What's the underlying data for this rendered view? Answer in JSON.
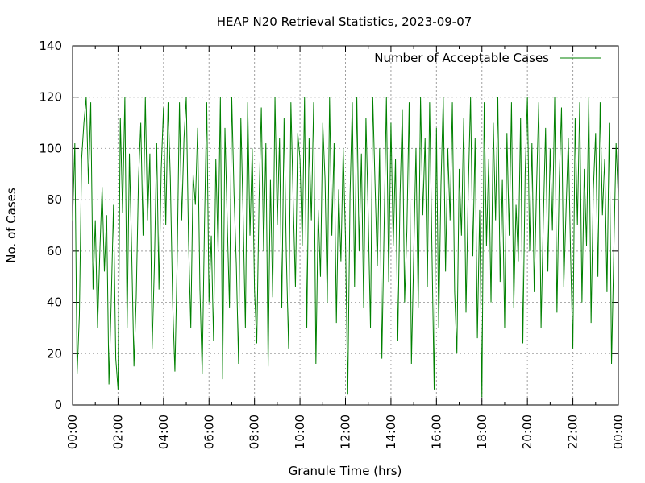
{
  "chart_data": {
    "type": "line",
    "title": "HEAP N20 Retrieval Statistics, 2023-09-07",
    "xlabel": "Granule Time (hrs)",
    "ylabel": "No. of Cases",
    "xlim": [
      0,
      24
    ],
    "ylim": [
      0,
      140
    ],
    "x_ticks": [
      0,
      2,
      4,
      6,
      8,
      10,
      12,
      14,
      16,
      18,
      20,
      22,
      24
    ],
    "x_tick_labels": [
      "00:00",
      "02:00",
      "04:00",
      "06:00",
      "08:00",
      "10:00",
      "12:00",
      "14:00",
      "16:00",
      "18:00",
      "20:00",
      "22:00",
      "00:00"
    ],
    "y_ticks": [
      0,
      20,
      40,
      60,
      80,
      100,
      120,
      140
    ],
    "y_tick_labels": [
      "0",
      "20",
      "40",
      "60",
      "80",
      "100",
      "120",
      "140"
    ],
    "grid": true,
    "legend_position": "top-right",
    "series": [
      {
        "name": "Number of Acceptable Cases",
        "color": "#008000",
        "x": [
          0.0,
          0.1,
          0.2,
          0.3,
          0.4,
          0.5,
          0.6,
          0.7,
          0.8,
          0.9,
          1.0,
          1.1,
          1.2,
          1.3,
          1.4,
          1.5,
          1.6,
          1.7,
          1.8,
          1.9,
          2.0,
          2.1,
          2.2,
          2.3,
          2.4,
          2.5,
          2.6,
          2.7,
          2.8,
          2.9,
          3.0,
          3.1,
          3.2,
          3.3,
          3.4,
          3.5,
          3.6,
          3.7,
          3.8,
          3.9,
          4.0,
          4.1,
          4.2,
          4.3,
          4.4,
          4.5,
          4.6,
          4.7,
          4.8,
          4.9,
          5.0,
          5.1,
          5.2,
          5.3,
          5.4,
          5.5,
          5.6,
          5.7,
          5.8,
          5.9,
          6.0,
          6.1,
          6.2,
          6.3,
          6.4,
          6.5,
          6.6,
          6.7,
          6.8,
          6.9,
          7.0,
          7.1,
          7.2,
          7.3,
          7.4,
          7.5,
          7.6,
          7.7,
          7.8,
          7.9,
          8.0,
          8.1,
          8.2,
          8.3,
          8.4,
          8.5,
          8.6,
          8.7,
          8.8,
          8.9,
          9.0,
          9.1,
          9.2,
          9.3,
          9.4,
          9.5,
          9.6,
          9.7,
          9.8,
          9.9,
          10.0,
          10.1,
          10.2,
          10.3,
          10.4,
          10.5,
          10.6,
          10.7,
          10.8,
          10.9,
          11.0,
          11.1,
          11.2,
          11.3,
          11.4,
          11.5,
          11.6,
          11.7,
          11.8,
          11.9,
          12.0,
          12.1,
          12.2,
          12.3,
          12.4,
          12.5,
          12.6,
          12.7,
          12.8,
          12.9,
          13.0,
          13.1,
          13.2,
          13.3,
          13.4,
          13.5,
          13.6,
          13.7,
          13.8,
          13.9,
          14.0,
          14.1,
          14.2,
          14.3,
          14.4,
          14.5,
          14.6,
          14.7,
          14.8,
          14.9,
          15.0,
          15.1,
          15.2,
          15.3,
          15.4,
          15.5,
          15.6,
          15.7,
          15.8,
          15.9,
          16.0,
          16.1,
          16.2,
          16.3,
          16.4,
          16.5,
          16.6,
          16.7,
          16.8,
          16.9,
          17.0,
          17.1,
          17.2,
          17.3,
          17.4,
          17.5,
          17.6,
          17.7,
          17.8,
          17.9,
          18.0,
          18.1,
          18.2,
          18.3,
          18.4,
          18.5,
          18.6,
          18.7,
          18.8,
          18.9,
          19.0,
          19.1,
          19.2,
          19.3,
          19.4,
          19.5,
          19.6,
          19.7,
          19.8,
          19.9,
          20.0,
          20.1,
          20.2,
          20.3,
          20.4,
          20.5,
          20.6,
          20.7,
          20.8,
          20.9,
          21.0,
          21.1,
          21.2,
          21.3,
          21.4,
          21.5,
          21.6,
          21.7,
          21.8,
          21.9,
          22.0,
          22.1,
          22.2,
          22.3,
          22.4,
          22.5,
          22.6,
          22.7,
          22.8,
          22.9,
          23.0,
          23.1,
          23.2,
          23.3,
          23.4,
          23.5,
          23.6,
          23.7,
          23.8,
          23.9,
          24.0
        ],
        "values": [
          72,
          102,
          12,
          35,
          96,
          110,
          120,
          86,
          118,
          45,
          72,
          30,
          60,
          85,
          52,
          74,
          8,
          40,
          78,
          18,
          6,
          112,
          75,
          120,
          30,
          98,
          60,
          15,
          42,
          88,
          110,
          66,
          120,
          72,
          98,
          22,
          55,
          102,
          45,
          92,
          116,
          70,
          118,
          88,
          40,
          13,
          56,
          118,
          72,
          104,
          120,
          64,
          30,
          90,
          78,
          108,
          45,
          12,
          70,
          118,
          40,
          66,
          25,
          96,
          60,
          120,
          10,
          108,
          72,
          38,
          120,
          82,
          55,
          16,
          112,
          74,
          30,
          118,
          66,
          100,
          45,
          24,
          80,
          116,
          60,
          102,
          15,
          88,
          42,
          120,
          70,
          104,
          38,
          112,
          58,
          22,
          118,
          80,
          46,
          106,
          96,
          62,
          120,
          30,
          104,
          72,
          118,
          16,
          76,
          50,
          110,
          88,
          40,
          120,
          66,
          102,
          32,
          84,
          56,
          100,
          65,
          4,
          82,
          118,
          46,
          120,
          60,
          98,
          38,
          112,
          74,
          30,
          120,
          86,
          54,
          100,
          18,
          70,
          120,
          48,
          110,
          62,
          96,
          25,
          82,
          115,
          40,
          68,
          118,
          16,
          58,
          100,
          38,
          120,
          74,
          104,
          46,
          118,
          62,
          6,
          108,
          30,
          86,
          120,
          52,
          100,
          72,
          118,
          44,
          20,
          92,
          66,
          112,
          36,
          84,
          120,
          58,
          104,
          26,
          76,
          3,
          118,
          62,
          96,
          40,
          110,
          72,
          120,
          48,
          88,
          30,
          106,
          66,
          118,
          38,
          78,
          56,
          112,
          24,
          90,
          120,
          60,
          102,
          44,
          84,
          118,
          30,
          72,
          108,
          52,
          100,
          68,
          120,
          36,
          88,
          116,
          46,
          76,
          104,
          58,
          22,
          112,
          70,
          118,
          40,
          92,
          62,
          120,
          32,
          84,
          106,
          50,
          118,
          74,
          96,
          44,
          110,
          16,
          60,
          102,
          80
        ]
      }
    ]
  }
}
